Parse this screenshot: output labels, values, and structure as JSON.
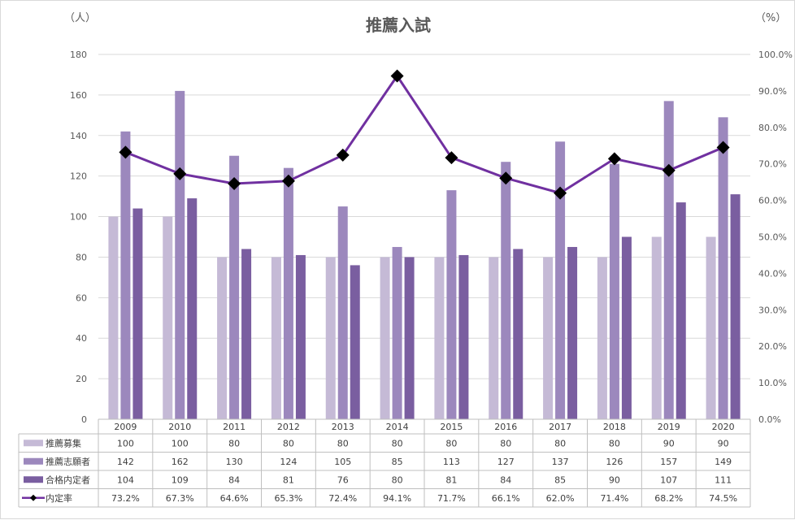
{
  "chart_data": {
    "type": "bar",
    "title": "推薦入試",
    "left_unit": "（人）",
    "right_unit": "（%）",
    "categories": [
      "2009",
      "2010",
      "2011",
      "2012",
      "2013",
      "2014",
      "2015",
      "2016",
      "2017",
      "2018",
      "2019",
      "2020"
    ],
    "ylim": [
      0,
      180
    ],
    "y2lim": [
      0,
      100
    ],
    "y_ticks": [
      "0",
      "20",
      "40",
      "60",
      "80",
      "100",
      "120",
      "140",
      "160",
      "180"
    ],
    "y2_ticks": [
      "0.0%",
      "10.0%",
      "20.0%",
      "30.0%",
      "40.0%",
      "50.0%",
      "60.0%",
      "70.0%",
      "80.0%",
      "90.0%",
      "100.0%"
    ],
    "grid": true,
    "legend": "data-table",
    "series": [
      {
        "name": "推薦募集",
        "type": "bar",
        "color": "#c5bad6",
        "values": [
          100,
          100,
          80,
          80,
          80,
          80,
          80,
          80,
          80,
          80,
          90,
          90
        ]
      },
      {
        "name": "推薦志願者",
        "type": "bar",
        "color": "#9c88bd",
        "values": [
          142,
          162,
          130,
          124,
          105,
          85,
          113,
          127,
          137,
          126,
          157,
          149
        ]
      },
      {
        "name": "合格内定者",
        "type": "bar",
        "color": "#7a5ea0",
        "values": [
          104,
          109,
          84,
          81,
          76,
          80,
          81,
          84,
          85,
          90,
          107,
          111
        ]
      },
      {
        "name": "内定率",
        "type": "line",
        "axis": "right",
        "color": "#7030a0",
        "marker_color": "#000000",
        "values": [
          73.2,
          67.3,
          64.6,
          65.3,
          72.4,
          94.1,
          71.7,
          66.1,
          62.0,
          71.4,
          68.2,
          74.5
        ],
        "labels": [
          "73.2%",
          "67.3%",
          "64.6%",
          "65.3%",
          "72.4%",
          "94.1%",
          "71.7%",
          "66.1%",
          "62.0%",
          "71.4%",
          "68.2%",
          "74.5%"
        ]
      }
    ]
  }
}
